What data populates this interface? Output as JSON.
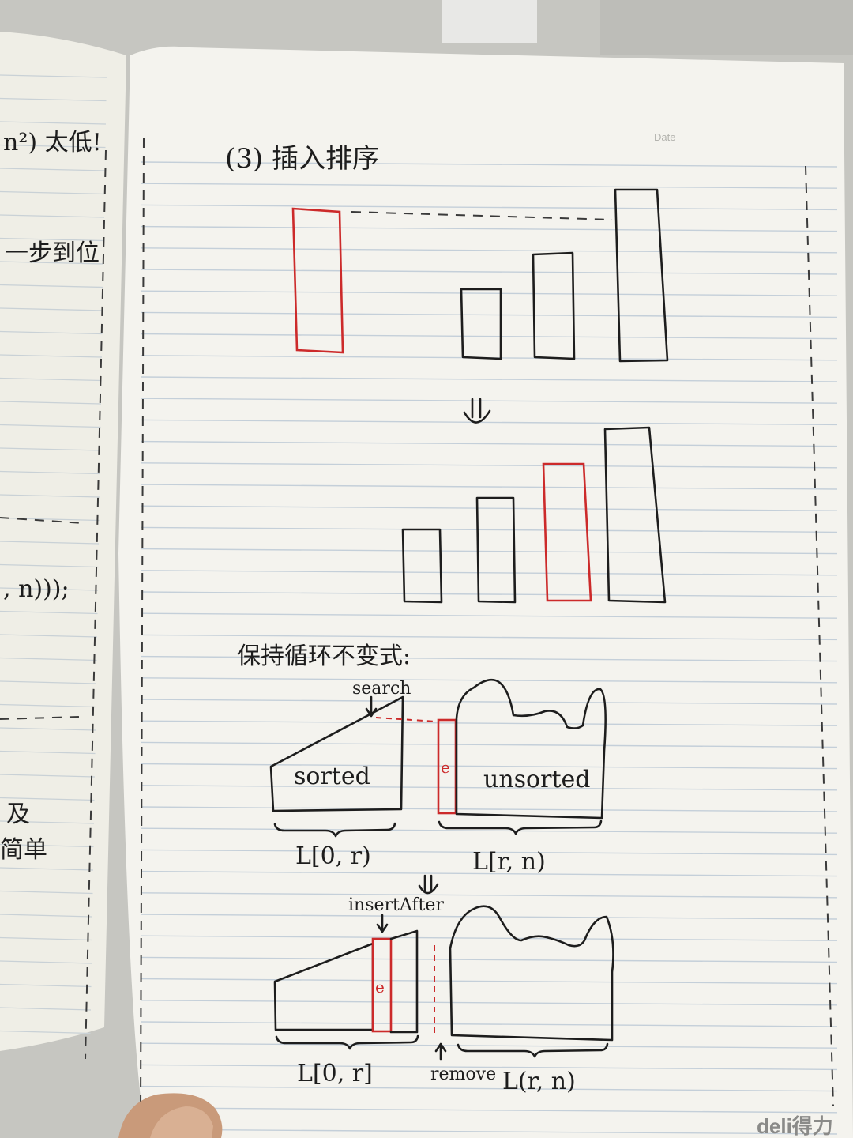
{
  "page_right": {
    "date_label": "Date",
    "heading": "(3) 插入排序",
    "loop_invariant_label": "保持循环不变式:",
    "labels": {
      "search": "search",
      "sorted": "sorted",
      "unsorted": "unsorted",
      "element_top": "e",
      "range_sorted_top": "L[0, r)",
      "range_unsorted_top": "L[r, n)",
      "insert_after": "insertAfter",
      "element_bottom": "e",
      "range_sorted_bottom": "L[0, r]",
      "remove": "remove",
      "range_unsorted_bottom": "L(r, n)"
    }
  },
  "page_left": {
    "fragments": [
      "n²) 太低!",
      "一步到位",
      ", n)));",
      "及",
      "简单"
    ]
  },
  "brand": "deli得力",
  "colors": {
    "paper": "#f3f1ea",
    "ink": "#1d1d1d",
    "highlight_red": "#cc2a2a",
    "rule_lines": "#c4cfd9"
  }
}
